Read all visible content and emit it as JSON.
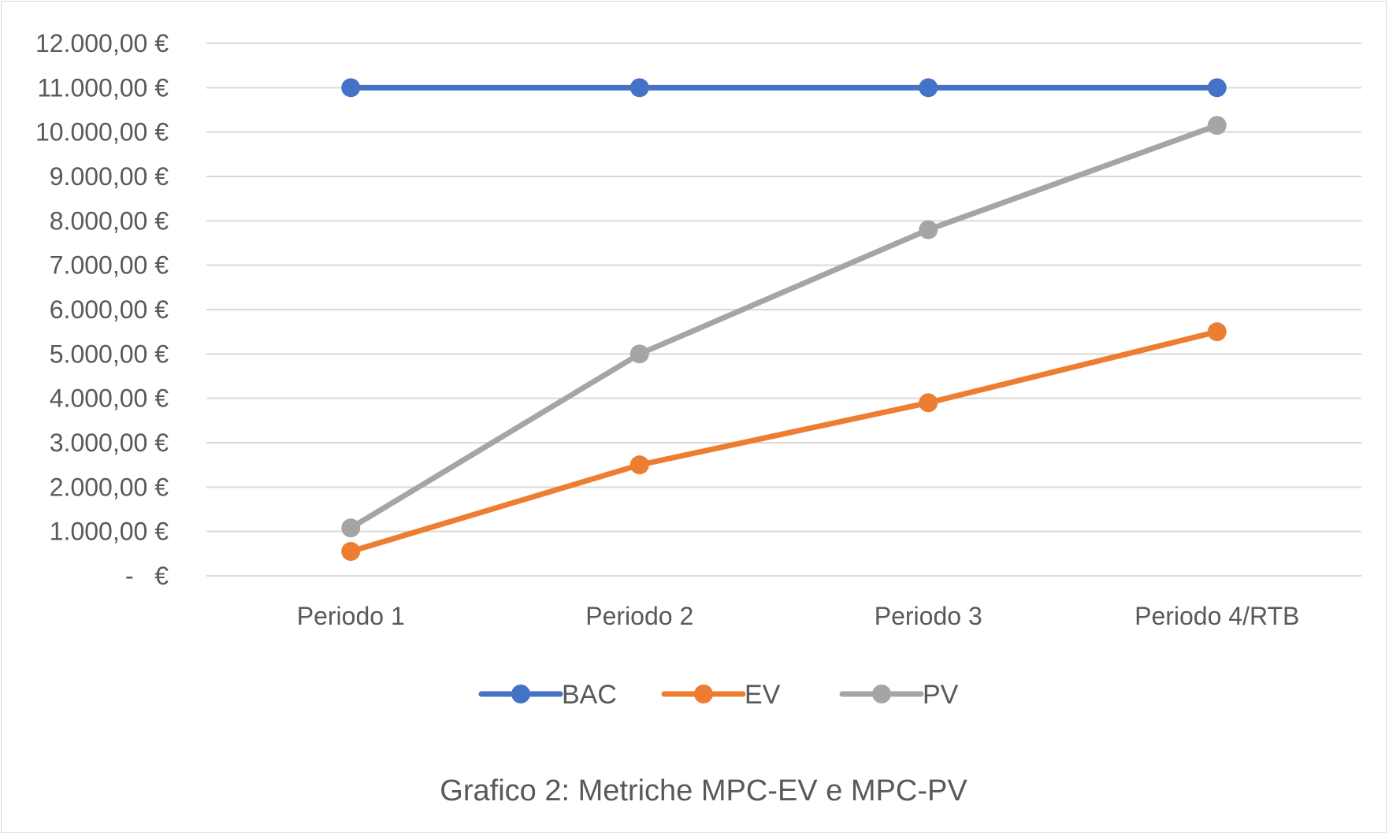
{
  "chart_data": {
    "type": "line",
    "title": "",
    "caption": "Grafico 2: Metriche MPC-EV e MPC-PV",
    "xlabel": "",
    "ylabel": "",
    "categories": [
      "Periodo 1",
      "Periodo 2",
      "Periodo 3",
      "Periodo 4/RTB"
    ],
    "ylim": [
      0,
      12000
    ],
    "ytick_values": [
      0,
      1000,
      2000,
      3000,
      4000,
      5000,
      6000,
      7000,
      8000,
      9000,
      10000,
      11000,
      12000
    ],
    "ytick_labels": [
      "-   €",
      "1.000,00 €",
      "2.000,00 €",
      "3.000,00 €",
      "4.000,00 €",
      "5.000,00 €",
      "6.000,00 €",
      "7.000,00 €",
      "8.000,00 €",
      "9.000,00 €",
      "10.000,00 €",
      "11.000,00 €",
      "12.000,00 €"
    ],
    "grid": true,
    "legend_position": "bottom",
    "series": [
      {
        "name": "BAC",
        "color": "#4472c4",
        "values": [
          11000,
          11000,
          11000,
          11000
        ]
      },
      {
        "name": "EV",
        "color": "#ed7d31",
        "values": [
          550,
          2500,
          3900,
          5500
        ]
      },
      {
        "name": "PV",
        "color": "#a5a5a5",
        "values": [
          1080,
          5000,
          7800,
          10150
        ]
      }
    ]
  }
}
